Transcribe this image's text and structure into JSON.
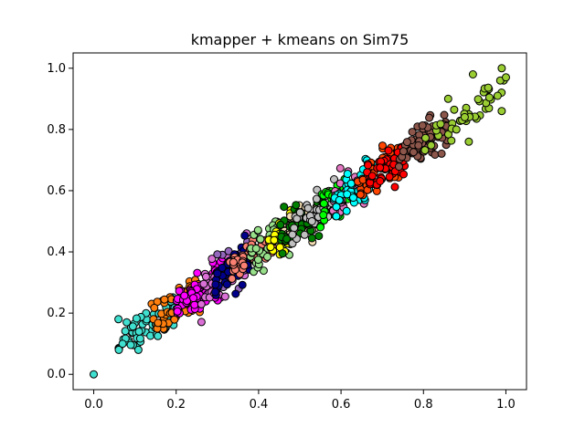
{
  "chart_data": {
    "type": "scatter",
    "title": "kmapper + kmeans on Sim75",
    "xlabel": "",
    "ylabel": "",
    "xlim": [
      -0.05,
      1.05
    ],
    "ylim": [
      -0.05,
      1.05
    ],
    "xticks": [
      0.0,
      0.2,
      0.4,
      0.6,
      0.8,
      1.0
    ],
    "yticks": [
      0.0,
      0.2,
      0.4,
      0.6,
      0.8,
      1.0
    ],
    "xtick_labels": [
      "0.0",
      "0.2",
      "0.4",
      "0.6",
      "0.8",
      "1.0"
    ],
    "ytick_labels": [
      "0.0",
      "0.2",
      "0.4",
      "0.6",
      "0.8",
      "1.0"
    ],
    "grid": false,
    "legend": "none",
    "marker_edge_color": "#000000",
    "clusters": [
      {
        "color": "#40e0d0",
        "x_range": [
          0.06,
          0.2
        ],
        "center_y_offset": 0.0,
        "n": 60,
        "points": [
          [
            0.0,
            0.0
          ],
          [
            0.06,
            0.18
          ],
          [
            0.07,
            0.1
          ],
          [
            0.08,
            0.17
          ]
        ]
      },
      {
        "color": "#ff7f0e",
        "x_range": [
          0.14,
          0.26
        ],
        "n": 60
      },
      {
        "color": "#ff00ff",
        "x_range": [
          0.2,
          0.32
        ],
        "n": 70
      },
      {
        "color": "#da70d6",
        "x_range": [
          0.26,
          0.38
        ],
        "n": 60
      },
      {
        "color": "#9467bd",
        "x_range": [
          0.3,
          0.4
        ],
        "n": 40
      },
      {
        "color": "#00008b",
        "x_range": [
          0.29,
          0.38
        ],
        "n": 40
      },
      {
        "color": "#fa8072",
        "x_range": [
          0.33,
          0.44
        ],
        "n": 50
      },
      {
        "color": "#98df8a",
        "x_range": [
          0.38,
          0.48
        ],
        "n": 50
      },
      {
        "color": "#ffff00",
        "x_range": [
          0.42,
          0.5
        ],
        "n": 40
      },
      {
        "color": "#f5deb3",
        "x_range": [
          0.46,
          0.58
        ],
        "n": 70
      },
      {
        "color": "#008000",
        "x_range": [
          0.45,
          0.56
        ],
        "n": 50
      },
      {
        "color": "#c0c0c0",
        "x_range": [
          0.48,
          0.6
        ],
        "n": 50
      },
      {
        "color": "#00ff00",
        "x_range": [
          0.55,
          0.63
        ],
        "n": 40
      },
      {
        "color": "#e377c2",
        "x_range": [
          0.58,
          0.68
        ],
        "n": 40
      },
      {
        "color": "#00ffff",
        "x_range": [
          0.58,
          0.68
        ],
        "n": 50
      },
      {
        "color": "#ff4500",
        "x_range": [
          0.64,
          0.74
        ],
        "n": 60
      },
      {
        "color": "#ff0000",
        "x_range": [
          0.66,
          0.76
        ],
        "n": 60
      },
      {
        "color": "#8c564b",
        "x_range": [
          0.74,
          0.86
        ],
        "n": 80
      },
      {
        "color": "#9acd32",
        "x_range": [
          0.8,
          1.0
        ],
        "n": 40,
        "points": [
          [
            0.92,
            0.98
          ],
          [
            0.99,
            1.0
          ],
          [
            1.0,
            0.97
          ],
          [
            0.98,
            0.91
          ],
          [
            0.99,
            0.86
          ],
          [
            0.88,
            0.8
          ],
          [
            0.91,
            0.76
          ],
          [
            0.86,
            0.9
          ],
          [
            0.9,
            0.84
          ]
        ]
      }
    ]
  }
}
